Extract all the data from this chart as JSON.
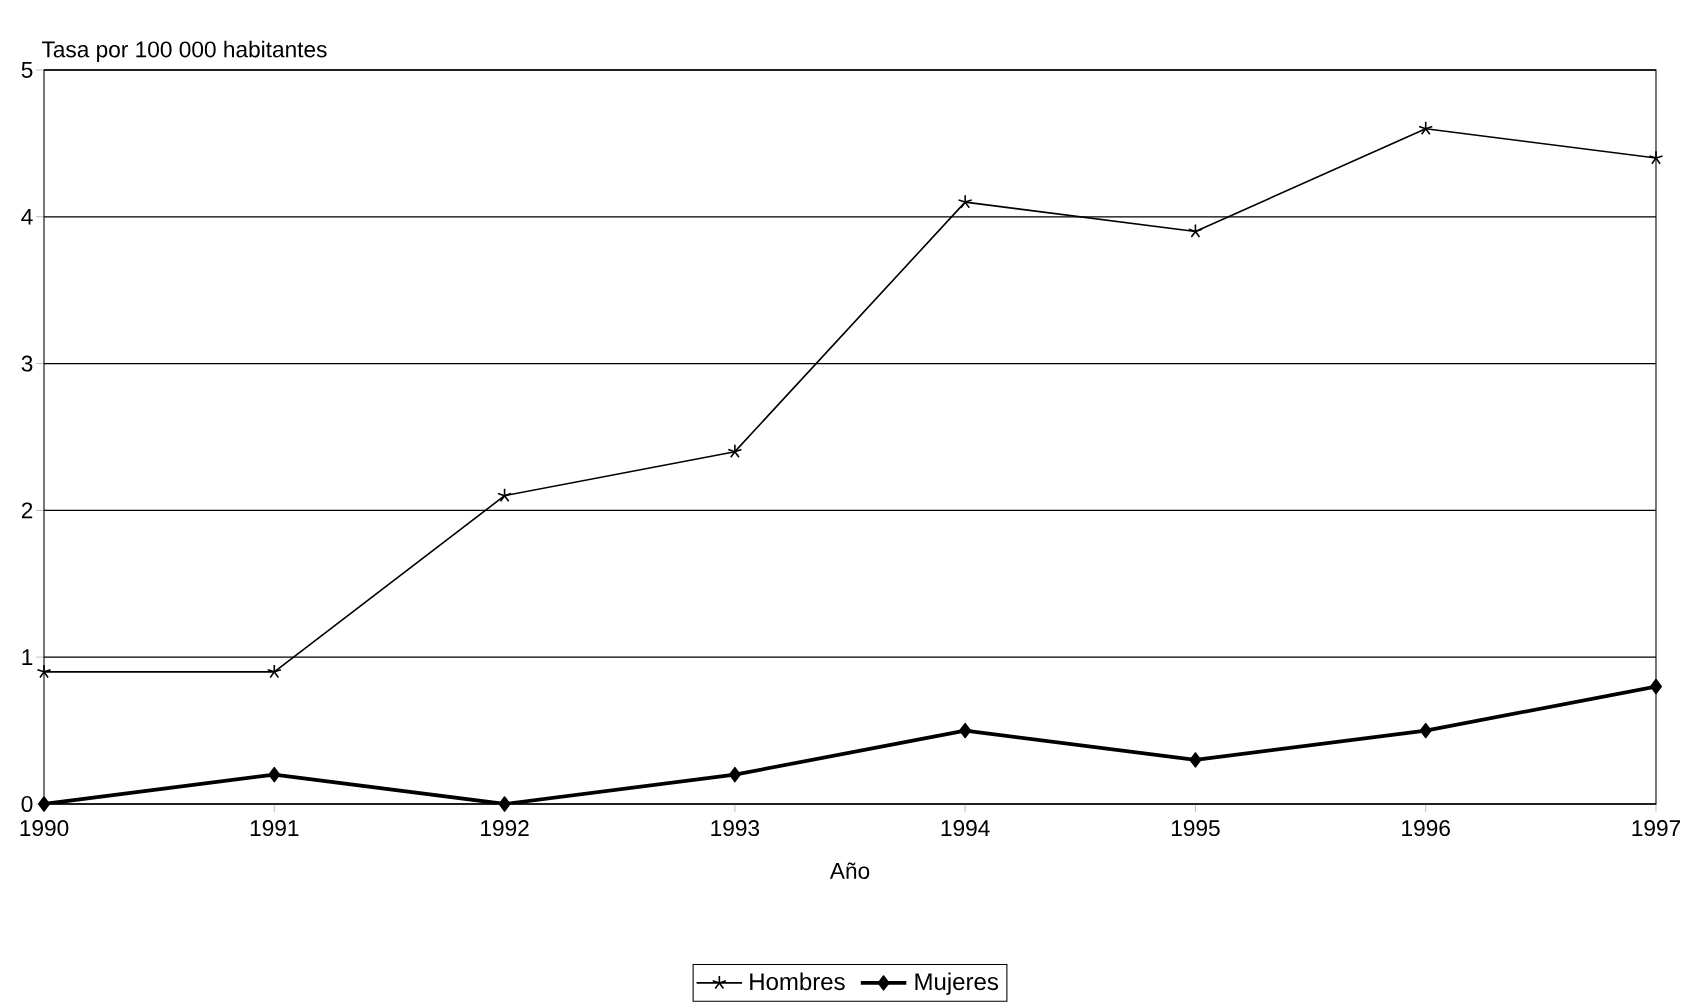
{
  "chart_data": {
    "type": "line",
    "ylabel": "Tasa por 100 000 habitantes",
    "xlabel": "Año",
    "x": [
      1990,
      1991,
      1992,
      1993,
      1994,
      1995,
      1996,
      1997
    ],
    "series": [
      {
        "name": "Hombres",
        "color": "#000000",
        "marker": "cross",
        "values": [
          0.9,
          0.9,
          2.1,
          2.4,
          4.1,
          3.9,
          4.6,
          4.4
        ]
      },
      {
        "name": "Mujeres",
        "color": "#000000",
        "marker": "diamond",
        "values": [
          0,
          0.2,
          0,
          0.2,
          0.5,
          0.3,
          0.5,
          0.8
        ]
      }
    ],
    "xlim": [
      1990,
      1997
    ],
    "xticks": [
      1990,
      1991,
      1992,
      1993,
      1994,
      1995,
      1996,
      1997
    ],
    "ylim": [
      0,
      5
    ],
    "yticks": [
      0,
      1,
      2,
      3,
      4,
      5
    ],
    "grid": "y",
    "legend": "bottom",
    "line_style": "solid"
  }
}
